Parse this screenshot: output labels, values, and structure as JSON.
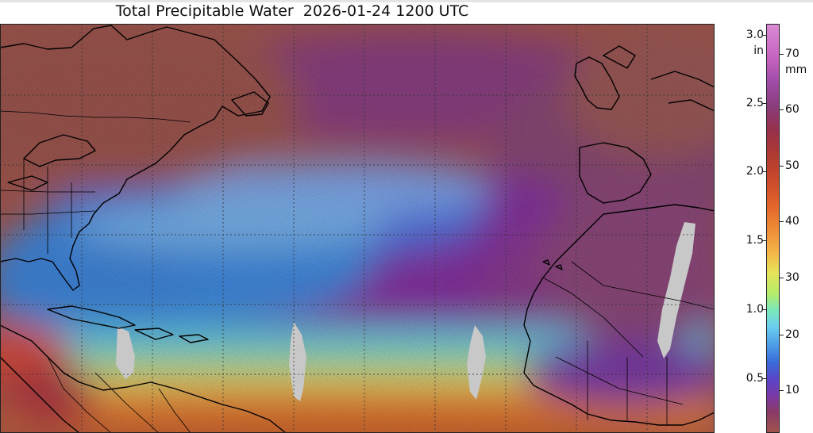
{
  "title": "Total Precipitable Water  2026-01-24 1200 UTC",
  "colorbar": {
    "left_unit": "in",
    "right_unit": "mm",
    "left_ticks": [
      "3.0",
      "2.5",
      "2.0",
      "1.5",
      "1.0",
      "0.5"
    ],
    "right_ticks": [
      "70",
      "60",
      "50",
      "40",
      "30",
      "20",
      "10"
    ]
  },
  "colors": {
    "dry": "#a0524d",
    "moist_high": "#e2622a",
    "very_moist": "#d98ad4",
    "missing_data": "#c8c8c8",
    "coastline": "#000000",
    "gridline": "#333333"
  }
}
